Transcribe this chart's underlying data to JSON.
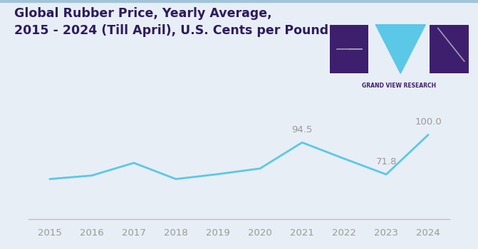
{
  "years": [
    2015,
    2016,
    2017,
    2018,
    2019,
    2020,
    2021,
    2022,
    2023,
    2024
  ],
  "values": [
    68.5,
    71.0,
    80.0,
    68.5,
    72.0,
    76.0,
    94.5,
    83.0,
    71.8,
    100.0
  ],
  "labeled_values": {
    "2021": "94.5",
    "2023": "71.8",
    "2024": "100.0"
  },
  "line_color": "#5bc8e8",
  "line_width": 2.0,
  "bg_color": "#e8eef5",
  "title_line1": "Global Rubber Price, Yearly Average,",
  "title_line2": "2015 - 2024 (Till April), U.S. Cents per Pound",
  "title_color": "#2d1b5e",
  "title_fontsize": 12.5,
  "axis_color": "#c0c0c0",
  "tick_color": "#999999",
  "tick_fontsize": 9.5,
  "annotation_color": "#999999",
  "annotation_fontsize": 9.5,
  "ylim": [
    40,
    125
  ],
  "xlim": [
    2014.5,
    2024.5
  ],
  "logo_purple": "#3d1f6e",
  "logo_blue": "#5bc8e8",
  "logo_text_color": "#3d1f6e",
  "logo_text": "GRAND VIEW RESEARCH",
  "border_top_color": "#a0c4d8"
}
